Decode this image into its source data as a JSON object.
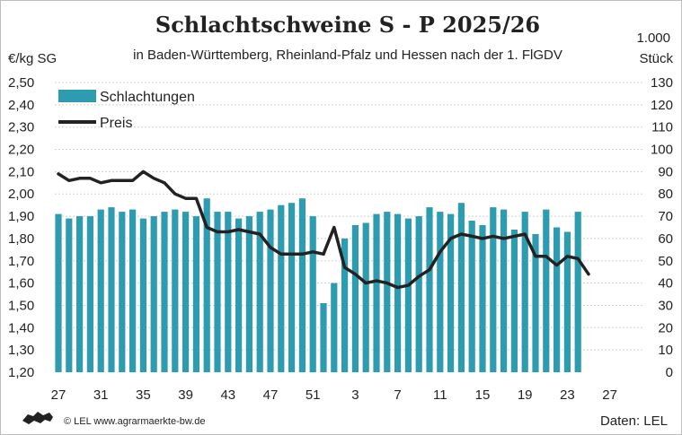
{
  "chart_data": {
    "type": "bar+line",
    "title": "Schlachtschweine S - P 2025/26",
    "subtitle": "in Baden-Württemberg, Rheinland-Pfalz und Hessen nach der 1. FlGDV",
    "y_left_label": "€/kg SG",
    "y_right_label_line1": "1.000",
    "y_right_label_line2": "Stück",
    "y_left": {
      "min": 1.2,
      "max": 2.5,
      "step": 0.1,
      "ticks": [
        "1,20",
        "1,30",
        "1,40",
        "1,50",
        "1,60",
        "1,70",
        "1,80",
        "1,90",
        "2,00",
        "2,10",
        "2,20",
        "2,30",
        "2,40",
        "2,50"
      ]
    },
    "y_right": {
      "min": 0,
      "max": 130,
      "step": 10,
      "ticks": [
        "0",
        "10",
        "20",
        "30",
        "40",
        "50",
        "60",
        "70",
        "80",
        "90",
        "100",
        "110",
        "120",
        "130"
      ]
    },
    "x_tick_labels": [
      "27",
      "31",
      "35",
      "39",
      "43",
      "47",
      "51",
      "3",
      "7",
      "11",
      "15",
      "19",
      "23",
      "27"
    ],
    "grid": "horizontal dashed",
    "legend_position": "top-left",
    "colors": {
      "bars": "#2e9cb0",
      "line": "#222222"
    },
    "series": [
      {
        "name": "Schlachtungen",
        "kind": "bar",
        "axis": "right",
        "values": [
          71,
          69,
          70,
          70,
          73,
          74,
          72,
          73,
          69,
          70,
          72,
          73,
          72,
          70,
          78,
          72,
          72,
          69,
          70,
          72,
          73,
          75,
          76,
          78,
          70,
          31,
          40,
          60,
          66,
          67,
          71,
          72,
          71,
          69,
          70,
          74,
          72,
          71,
          76,
          68,
          66,
          74,
          73,
          64,
          72,
          62,
          73,
          65,
          63,
          72
        ]
      },
      {
        "name": "Preis",
        "kind": "line",
        "axis": "left",
        "values": [
          2.09,
          2.06,
          2.07,
          2.07,
          2.05,
          2.06,
          2.06,
          2.06,
          2.1,
          2.07,
          2.05,
          2.0,
          1.98,
          1.98,
          1.85,
          1.83,
          1.83,
          1.84,
          1.83,
          1.82,
          1.76,
          1.73,
          1.73,
          1.73,
          1.74,
          1.73,
          1.85,
          1.67,
          1.64,
          1.6,
          1.61,
          1.6,
          1.58,
          1.59,
          1.63,
          1.66,
          1.74,
          1.8,
          1.82,
          1.81,
          1.8,
          1.81,
          1.8,
          1.81,
          1.82,
          1.72,
          1.72,
          1.68,
          1.72,
          1.71,
          1.64
        ]
      }
    ]
  },
  "footer": {
    "copyright": "© LEL www.agrarmaerkte-bw.de",
    "source": "Daten: LEL",
    "logo_icon": "baden-wuerttemberg-lion-logo"
  }
}
